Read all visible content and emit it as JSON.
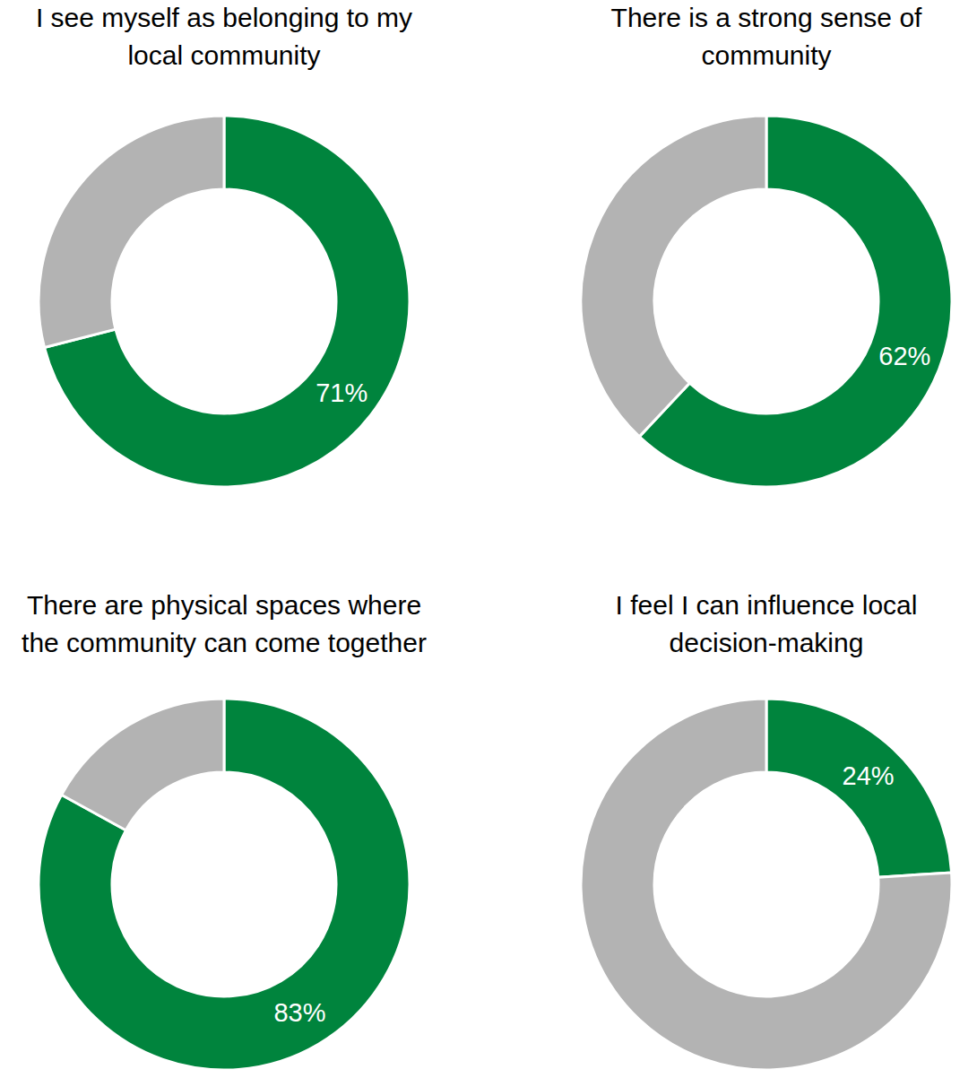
{
  "chart_data": [
    {
      "type": "pie",
      "title": "I see myself as belonging to my local community",
      "values": [
        71,
        29
      ],
      "value_labels": [
        "71%",
        null
      ],
      "colors": [
        "#00843d",
        "#b3b3b3"
      ],
      "data_labels": true
    },
    {
      "type": "pie",
      "title": "There is a strong sense of community",
      "values": [
        62,
        38
      ],
      "value_labels": [
        "62%",
        null
      ],
      "colors": [
        "#00843d",
        "#b3b3b3"
      ],
      "data_labels": true
    },
    {
      "type": "pie",
      "title": "There are physical spaces where the community can come together",
      "values": [
        83,
        17
      ],
      "value_labels": [
        "83%",
        null
      ],
      "colors": [
        "#00843d",
        "#b3b3b3"
      ],
      "data_labels": true
    },
    {
      "type": "pie",
      "title": "I feel I can influence local decision-making",
      "values": [
        24,
        76
      ],
      "value_labels": [
        "24%",
        null
      ],
      "colors": [
        "#00843d",
        "#b3b3b3"
      ],
      "data_labels": true
    }
  ]
}
